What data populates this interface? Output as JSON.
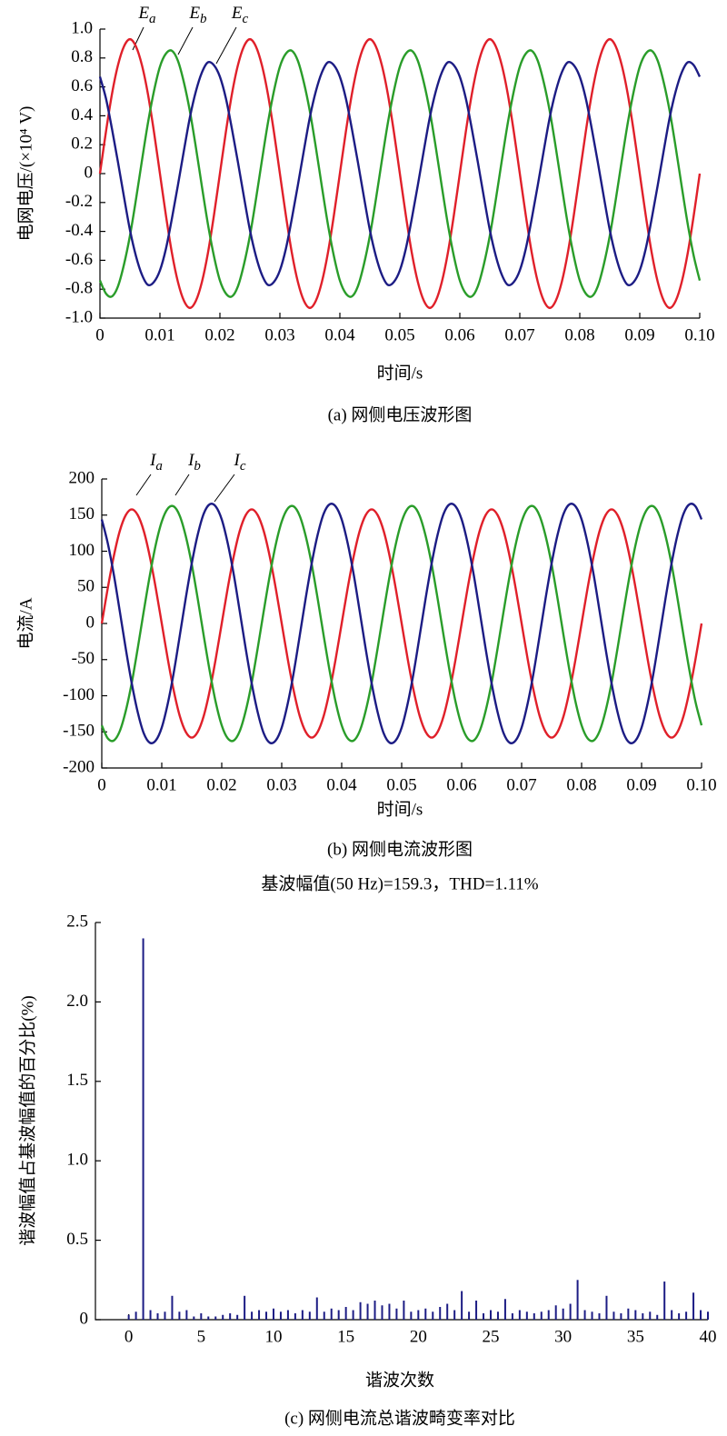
{
  "chart_data": [
    {
      "type": "line",
      "xlabel": "时间/s",
      "ylabel": "电网电压/(×10⁴ V)",
      "caption": "(a) 网侧电压波形图",
      "xlim": [
        0,
        0.1
      ],
      "ylim": [
        -1,
        1
      ],
      "xticks": [
        0,
        0.01,
        0.02,
        0.03,
        0.04,
        0.05,
        0.06,
        0.07,
        0.08,
        0.09,
        {
          "value": 0.1,
          "label": "0.10"
        }
      ],
      "yticks": [
        {
          "value": 1,
          "label": "1.0"
        },
        0.8,
        0.6,
        0.4,
        0.2,
        0,
        -0.2,
        -0.4,
        -0.6,
        -0.8,
        {
          "value": -1,
          "label": "-1.0"
        }
      ],
      "x": [
        0,
        0.001,
        0.002,
        0.003,
        0.004,
        0.005,
        0.006,
        0.007,
        0.008,
        0.009,
        0.01,
        0.011,
        0.012,
        0.013,
        0.014,
        0.015,
        0.016,
        0.017,
        0.018,
        0.019,
        0.02,
        0.021,
        0.022,
        0.023,
        0.024,
        0.025,
        0.026,
        0.027,
        0.028,
        0.029,
        0.03,
        0.031,
        0.032,
        0.033,
        0.034,
        0.035,
        0.036,
        0.037,
        0.038,
        0.039,
        0.04,
        0.041,
        0.042,
        0.043,
        0.044,
        0.045,
        0.046,
        0.047,
        0.048,
        0.049,
        0.05,
        0.051,
        0.052,
        0.053,
        0.054,
        0.055,
        0.056,
        0.057,
        0.058,
        0.059,
        0.06,
        0.061,
        0.062,
        0.063,
        0.064,
        0.065,
        0.066,
        0.067,
        0.068,
        0.069,
        0.07,
        0.071,
        0.072,
        0.073,
        0.074,
        0.075,
        0.076,
        0.077,
        0.078,
        0.079,
        0.08,
        0.081,
        0.082,
        0.083,
        0.084,
        0.085,
        0.086,
        0.087,
        0.088,
        0.089,
        0.09,
        0.091,
        0.092,
        0.093,
        0.094,
        0.095,
        0.096,
        0.097,
        0.098,
        0.099,
        0.1
      ],
      "series": [
        {
          "name": "Ea",
          "color": "#e0202a",
          "values": [
            0,
            0.29,
            0.55,
            0.75,
            0.88,
            0.93,
            0.88,
            0.75,
            0.55,
            0.29,
            0,
            -0.29,
            -0.55,
            -0.75,
            -0.88,
            -0.93,
            -0.88,
            -0.75,
            -0.55,
            -0.29,
            0,
            0.29,
            0.55,
            0.75,
            0.88,
            0.93,
            0.88,
            0.75,
            0.55,
            0.29,
            0,
            -0.29,
            -0.55,
            -0.75,
            -0.88,
            -0.93,
            -0.88,
            -0.75,
            -0.55,
            -0.29,
            0,
            0.29,
            0.55,
            0.75,
            0.88,
            0.93,
            0.88,
            0.75,
            0.55,
            0.29,
            0,
            -0.29,
            -0.55,
            -0.75,
            -0.88,
            -0.93,
            -0.88,
            -0.75,
            -0.55,
            -0.29,
            0,
            0.29,
            0.55,
            0.75,
            0.88,
            0.93,
            0.88,
            0.75,
            0.55,
            0.29,
            0,
            -0.29,
            -0.55,
            -0.75,
            -0.88,
            -0.93,
            -0.88,
            -0.75,
            -0.55,
            -0.29,
            0,
            0.29,
            0.55,
            0.75,
            0.88,
            0.93,
            0.88,
            0.75,
            0.55,
            0.29,
            0,
            -0.29,
            -0.55,
            -0.75,
            -0.88,
            -0.93,
            -0.88,
            -0.75,
            -0.55,
            -0.29,
            0
          ]
        },
        {
          "name": "Eb",
          "color": "#2a9d2a",
          "values": [
            -0.74,
            -0.83,
            -0.85,
            -0.78,
            -0.63,
            -0.43,
            -0.18,
            0.09,
            0.35,
            0.57,
            0.74,
            0.83,
            0.85,
            0.78,
            0.63,
            0.43,
            0.18,
            -0.09,
            -0.35,
            -0.57,
            -0.74,
            -0.83,
            -0.85,
            -0.78,
            -0.63,
            -0.43,
            -0.18,
            0.09,
            0.35,
            0.57,
            0.74,
            0.83,
            0.85,
            0.78,
            0.63,
            0.43,
            0.18,
            -0.09,
            -0.35,
            -0.57,
            -0.74,
            -0.83,
            -0.85,
            -0.78,
            -0.63,
            -0.43,
            -0.18,
            0.09,
            0.35,
            0.57,
            0.74,
            0.83,
            0.85,
            0.78,
            0.63,
            0.43,
            0.18,
            -0.09,
            -0.35,
            -0.57,
            -0.74,
            -0.83,
            -0.85,
            -0.78,
            -0.63,
            -0.43,
            -0.18,
            0.09,
            0.35,
            0.57,
            0.74,
            0.83,
            0.85,
            0.78,
            0.63,
            0.43,
            0.18,
            -0.09,
            -0.35,
            -0.57,
            -0.74,
            -0.83,
            -0.85,
            -0.78,
            -0.63,
            -0.43,
            -0.18,
            0.09,
            0.35,
            0.57,
            0.74,
            0.83,
            0.85,
            0.78,
            0.63,
            0.43,
            0.18,
            -0.09,
            -0.35,
            -0.57,
            -0.74
          ]
        },
        {
          "name": "Ec",
          "color": "#1c1c84",
          "values": [
            0.67,
            0.52,
            0.31,
            0.08,
            -0.16,
            -0.39,
            -0.57,
            -0.7,
            -0.77,
            -0.75,
            -0.67,
            -0.52,
            -0.31,
            -0.08,
            0.16,
            0.39,
            0.57,
            0.7,
            0.77,
            0.75,
            0.67,
            0.52,
            0.31,
            0.08,
            -0.16,
            -0.39,
            -0.57,
            -0.7,
            -0.77,
            -0.75,
            -0.67,
            -0.52,
            -0.31,
            -0.08,
            0.16,
            0.39,
            0.57,
            0.7,
            0.77,
            0.75,
            0.67,
            0.52,
            0.31,
            0.08,
            -0.16,
            -0.39,
            -0.57,
            -0.7,
            -0.77,
            -0.75,
            -0.67,
            -0.52,
            -0.31,
            -0.08,
            0.16,
            0.39,
            0.57,
            0.7,
            0.77,
            0.75,
            0.67,
            0.52,
            0.31,
            0.08,
            -0.16,
            -0.39,
            -0.57,
            -0.7,
            -0.77,
            -0.75,
            -0.67,
            -0.52,
            -0.31,
            -0.08,
            0.16,
            0.39,
            0.57,
            0.7,
            0.77,
            0.75,
            0.67,
            0.52,
            0.31,
            0.08,
            -0.16,
            -0.39,
            -0.57,
            -0.7,
            -0.77,
            -0.75,
            -0.67,
            -0.52,
            -0.31,
            -0.08,
            0.16,
            0.39,
            0.57,
            0.7,
            0.77,
            0.75,
            0.67
          ]
        }
      ]
    },
    {
      "type": "line",
      "xlabel": "时间/s",
      "ylabel": "电流/A",
      "caption": "(b) 网侧电流波形图",
      "xlim": [
        0,
        0.1
      ],
      "ylim": [
        -200,
        200
      ],
      "xticks": [
        0,
        0.01,
        0.02,
        0.03,
        0.04,
        0.05,
        0.06,
        0.07,
        0.08,
        0.09,
        {
          "value": 0.1,
          "label": "0.10"
        }
      ],
      "yticks": [
        200,
        150,
        100,
        50,
        0,
        -50,
        -100,
        -150,
        -200
      ],
      "x": [
        0,
        0.001,
        0.002,
        0.003,
        0.004,
        0.005,
        0.006,
        0.007,
        0.008,
        0.009,
        0.01,
        0.011,
        0.012,
        0.013,
        0.014,
        0.015,
        0.016,
        0.017,
        0.018,
        0.019,
        0.02,
        0.021,
        0.022,
        0.023,
        0.024,
        0.025,
        0.026,
        0.027,
        0.028,
        0.029,
        0.03,
        0.031,
        0.032,
        0.033,
        0.034,
        0.035,
        0.036,
        0.037,
        0.038,
        0.039,
        0.04,
        0.041,
        0.042,
        0.043,
        0.044,
        0.045,
        0.046,
        0.047,
        0.048,
        0.049,
        0.05,
        0.051,
        0.052,
        0.053,
        0.054,
        0.055,
        0.056,
        0.057,
        0.058,
        0.059,
        0.06,
        0.061,
        0.062,
        0.063,
        0.064,
        0.065,
        0.066,
        0.067,
        0.068,
        0.069,
        0.07,
        0.071,
        0.072,
        0.073,
        0.074,
        0.075,
        0.076,
        0.077,
        0.078,
        0.079,
        0.08,
        0.081,
        0.082,
        0.083,
        0.084,
        0.085,
        0.086,
        0.087,
        0.088,
        0.089,
        0.09,
        0.091,
        0.092,
        0.093,
        0.094,
        0.095,
        0.096,
        0.097,
        0.098,
        0.099,
        0.1
      ],
      "series": [
        {
          "name": "Ia",
          "color": "#e0202a",
          "values": [
            0,
            49,
            93,
            128,
            150,
            158,
            150,
            128,
            93,
            49,
            0,
            -49,
            -93,
            -128,
            -150,
            -158,
            -150,
            -128,
            -93,
            -49,
            0,
            49,
            93,
            128,
            150,
            158,
            150,
            128,
            93,
            49,
            0,
            -49,
            -93,
            -128,
            -150,
            -158,
            -150,
            -128,
            -93,
            -49,
            0,
            49,
            93,
            128,
            150,
            158,
            150,
            128,
            93,
            49,
            0,
            -49,
            -93,
            -128,
            -150,
            -158,
            -150,
            -128,
            -93,
            -49,
            0,
            49,
            93,
            128,
            150,
            158,
            150,
            128,
            93,
            49,
            0,
            -49,
            -93,
            -128,
            -150,
            -158,
            -150,
            -128,
            -93,
            -49,
            0,
            49,
            93,
            128,
            150,
            158,
            150,
            128,
            93,
            49,
            0,
            -49,
            -93,
            -128,
            -150,
            -158,
            -150,
            -128,
            -93,
            -49,
            0
          ]
        },
        {
          "name": "Ib",
          "color": "#2a9d2a",
          "values": [
            -141,
            -159,
            -162,
            -149,
            -121,
            -82,
            -34,
            17,
            66,
            109,
            141,
            159,
            162,
            149,
            121,
            82,
            34,
            -17,
            -66,
            -109,
            -141,
            -159,
            -162,
            -149,
            -121,
            -82,
            -34,
            17,
            66,
            109,
            141,
            159,
            162,
            149,
            121,
            82,
            34,
            -17,
            -66,
            -109,
            -141,
            -159,
            -162,
            -149,
            -121,
            -82,
            -34,
            17,
            66,
            109,
            141,
            159,
            162,
            149,
            121,
            82,
            34,
            -17,
            -66,
            -109,
            -141,
            -159,
            -162,
            -149,
            -121,
            -82,
            -34,
            17,
            66,
            109,
            141,
            159,
            162,
            149,
            121,
            82,
            34,
            -17,
            -66,
            -109,
            -141,
            -159,
            -162,
            -149,
            -121,
            -82,
            -34,
            17,
            66,
            109,
            141,
            159,
            162,
            149,
            121,
            82,
            34,
            -17,
            -66,
            -109,
            -141
          ]
        },
        {
          "name": "Ic",
          "color": "#1c1c84",
          "values": [
            144,
            111,
            68,
            17,
            -35,
            -83,
            -123,
            -152,
            -165,
            -162,
            -144,
            -111,
            -68,
            -17,
            35,
            83,
            123,
            152,
            165,
            162,
            144,
            111,
            68,
            17,
            -35,
            -83,
            -123,
            -152,
            -165,
            -162,
            -144,
            -111,
            -68,
            -17,
            35,
            83,
            123,
            152,
            165,
            162,
            144,
            111,
            68,
            17,
            -35,
            -83,
            -123,
            -152,
            -165,
            -162,
            -144,
            -111,
            -68,
            -17,
            35,
            83,
            123,
            152,
            165,
            162,
            144,
            111,
            68,
            17,
            -35,
            -83,
            -123,
            -152,
            -165,
            -162,
            -144,
            -111,
            -68,
            -17,
            35,
            83,
            123,
            152,
            165,
            162,
            144,
            111,
            68,
            17,
            -35,
            -83,
            -123,
            -152,
            -165,
            -162,
            -144,
            -111,
            -68,
            -17,
            35,
            83,
            123,
            152,
            165,
            162,
            144
          ]
        }
      ]
    },
    {
      "type": "bar",
      "title": "基波幅值(50 Hz)=159.3，THD=1.11%",
      "xlabel": "谐波次数",
      "ylabel": "谐波幅值占基波幅值的百分比(%)",
      "caption": "(c) 网侧电流总谐波畸变率对比",
      "xlim": [
        -2.3,
        40
      ],
      "ylim": [
        0,
        2.5
      ],
      "xticks": [
        0,
        5,
        10,
        15,
        20,
        25,
        30,
        35,
        40
      ],
      "yticks": [
        0,
        0.5,
        {
          "value": 1,
          "label": "1.0"
        },
        1.5,
        {
          "value": 2,
          "label": "2.0"
        },
        2.5
      ],
      "color": "#1c1c84",
      "x": [
        0,
        0.5,
        1,
        1.5,
        2,
        2.5,
        3,
        3.5,
        4,
        4.5,
        5,
        5.5,
        6,
        6.5,
        7,
        7.5,
        8,
        8.5,
        9,
        9.5,
        10,
        10.5,
        11,
        11.5,
        12,
        12.5,
        13,
        13.5,
        14,
        14.5,
        15,
        15.5,
        16,
        16.5,
        17,
        17.5,
        18,
        18.5,
        19,
        19.5,
        20,
        20.5,
        21,
        21.5,
        22,
        22.5,
        23,
        23.5,
        24,
        24.5,
        25,
        25.5,
        26,
        26.5,
        27,
        27.5,
        28,
        28.5,
        29,
        29.5,
        30,
        30.5,
        31,
        31.5,
        32,
        32.5,
        33,
        33.5,
        34,
        34.5,
        35,
        35.5,
        36,
        36.5,
        37,
        37.5,
        38,
        38.5,
        39,
        39.5,
        40
      ],
      "values": [
        0.03,
        0.05,
        2.4,
        0.06,
        0.04,
        0.05,
        0.15,
        0.05,
        0.06,
        0.02,
        0.04,
        0.02,
        0.02,
        0.03,
        0.04,
        0.03,
        0.15,
        0.05,
        0.06,
        0.05,
        0.07,
        0.05,
        0.06,
        0.04,
        0.06,
        0.05,
        0.14,
        0.05,
        0.07,
        0.06,
        0.08,
        0.06,
        0.11,
        0.1,
        0.12,
        0.09,
        0.1,
        0.07,
        0.12,
        0.05,
        0.06,
        0.07,
        0.05,
        0.08,
        0.1,
        0.06,
        0.18,
        0.05,
        0.12,
        0.04,
        0.06,
        0.05,
        0.13,
        0.04,
        0.06,
        0.05,
        0.04,
        0.05,
        0.06,
        0.09,
        0.07,
        0.1,
        0.25,
        0.06,
        0.05,
        0.04,
        0.15,
        0.05,
        0.04,
        0.07,
        0.06,
        0.04,
        0.05,
        0.03,
        0.24,
        0.06,
        0.04,
        0.05,
        0.17,
        0.06,
        0.05
      ]
    }
  ]
}
